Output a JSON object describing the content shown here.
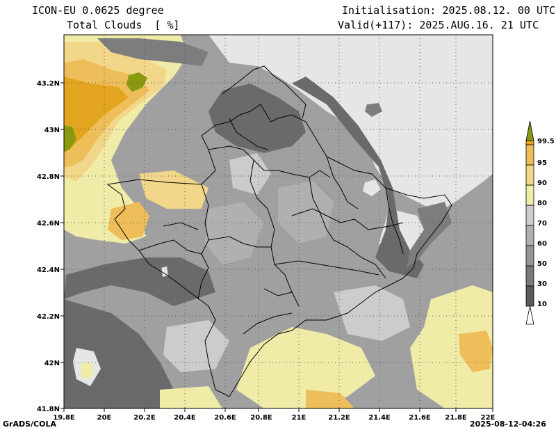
{
  "header": {
    "model": "ICON-EU 0.0625 degree",
    "variable": "Total Clouds  [ %]",
    "initialisation": "Initialisation: 2025.08.12. 00 UTC",
    "valid": "Valid(+117): 2025.AUG.16. 21 UTC"
  },
  "footer": {
    "left": "GrADS/COLA",
    "right": "2025-08-12-04:26"
  },
  "map": {
    "lon_ticks": [
      "19.8E",
      "20E",
      "20.2E",
      "20.4E",
      "20.6E",
      "20.8E",
      "21E",
      "21.2E",
      "21.4E",
      "21.6E",
      "21.8E",
      "22E"
    ],
    "lat_ticks": [
      "41.8N",
      "42N",
      "42.2N",
      "42.4N",
      "42.6N",
      "42.8N",
      "43N",
      "43.2N"
    ]
  },
  "colorbar": {
    "levels": [
      "10",
      "30",
      "50",
      "60",
      "70",
      "80",
      "90",
      "95",
      "99.5"
    ],
    "colors": [
      "#5a5a5a",
      "#7a7a7a",
      "#969696",
      "#b0b0b0",
      "#cccccc",
      "#f0eca8",
      "#f2d78a",
      "#eebe5a",
      "#e3a520",
      "#8a9a10"
    ]
  }
}
